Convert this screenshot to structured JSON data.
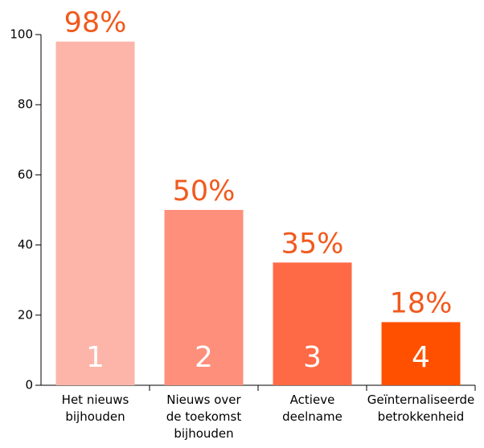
{
  "chart_data": {
    "type": "bar",
    "categories": [
      "Het nieuws\nbijhouden",
      "Nieuws over\nde toekomst\nbijhouden",
      "Actieve\ndeelname",
      "Geïnternaliseerde\nbetrokkenheid"
    ],
    "values": [
      98,
      50,
      35,
      18
    ],
    "value_labels": [
      "98%",
      "50%",
      "35%",
      "18%"
    ],
    "bar_labels": [
      "1",
      "2",
      "3",
      "4"
    ],
    "colors": [
      "#fdb5aa",
      "#fd8f7b",
      "#fe6a45",
      "#ff5000"
    ],
    "value_label_color": "#f05a1e",
    "ylim": [
      0,
      100
    ],
    "yticks": [
      0,
      20,
      40,
      60,
      80,
      100
    ],
    "grid": false
  }
}
